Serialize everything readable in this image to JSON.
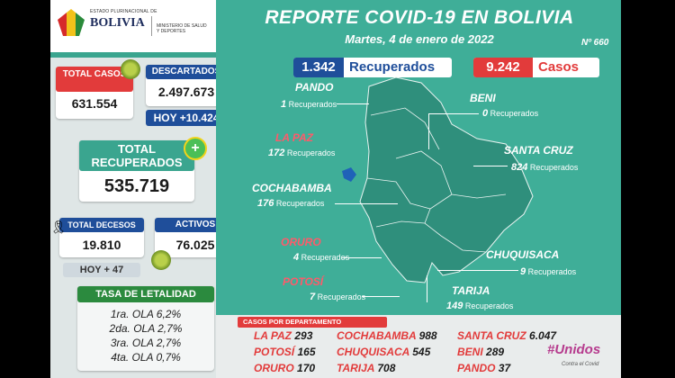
{
  "header": {
    "state_name": "ESTADO PLURINACIONAL DE",
    "country": "BOLIVIA",
    "ministry": "MINISTERIO DE SALUD Y DEPORTES",
    "title": "REPORTE COVID-19 EN BOLIVIA",
    "date": "Martes, 4 de enero de 2022",
    "report_number": "Nº 660"
  },
  "stats": {
    "total_cases_label": "TOTAL CASOS",
    "total_cases": "631.554",
    "discarded_label": "DESCARTADOS",
    "discarded": "2.497.673",
    "discarded_today": "HOY +10.424",
    "total_recovered_label": "TOTAL RECUPERADOS",
    "total_recovered": "535.719",
    "total_deaths_label": "TOTAL DECESOS",
    "total_deaths": "19.810",
    "deaths_today": "HOY + 47",
    "active_label": "ACTIVOS",
    "active": "76.025"
  },
  "lethality": {
    "title": "TASA DE LETALIDAD",
    "waves": [
      "1ra. OLA 6,2%",
      "2da. OLA 2,7%",
      "3ra. OLA 2,7%",
      "4ta. OLA 0,7%"
    ]
  },
  "daily": {
    "recovered_value": "1.342",
    "recovered_label": "Recuperados",
    "cases_value": "9.242",
    "cases_label": "Casos"
  },
  "recovered_by_department": [
    {
      "name": "PANDO",
      "value": "1",
      "unit": "Recuperados"
    },
    {
      "name": "BENI",
      "value": "0",
      "unit": "Recuperados"
    },
    {
      "name": "LA PAZ",
      "value": "172",
      "unit": "Recuperados"
    },
    {
      "name": "SANTA CRUZ",
      "value": "824",
      "unit": "Recuperados"
    },
    {
      "name": "COCHABAMBA",
      "value": "176",
      "unit": "Recuperados"
    },
    {
      "name": "ORURO",
      "value": "4",
      "unit": "Recuperados"
    },
    {
      "name": "CHUQUISACA",
      "value": "9",
      "unit": "Recuperados"
    },
    {
      "name": "POTOSÍ",
      "value": "7",
      "unit": "Recuperados"
    },
    {
      "name": "TARIJA",
      "value": "149",
      "unit": "Recuperados"
    }
  ],
  "cases_by_department": {
    "title": "CASOS POR DEPARTAMENTO",
    "rows": [
      [
        {
          "name": "LA PAZ",
          "value": "293"
        },
        {
          "name": "COCHABAMBA",
          "value": "988"
        },
        {
          "name": "SANTA CRUZ",
          "value": "6.047"
        }
      ],
      [
        {
          "name": "POTOSÍ",
          "value": "165"
        },
        {
          "name": "CHUQUISACA",
          "value": "545"
        },
        {
          "name": "BENI",
          "value": "289"
        }
      ],
      [
        {
          "name": "ORURO",
          "value": "170"
        },
        {
          "name": "TARIJA",
          "value": "708"
        },
        {
          "name": "PANDO",
          "value": "37"
        }
      ]
    ]
  },
  "campaign": {
    "text": "#Unidos",
    "subtext": "Contra el Covid"
  },
  "colors": {
    "teal": "#3fae98",
    "red": "#e23b3b",
    "blue": "#1f4e9a",
    "green": "#2b8a3e",
    "map": "#2f8f7c"
  }
}
